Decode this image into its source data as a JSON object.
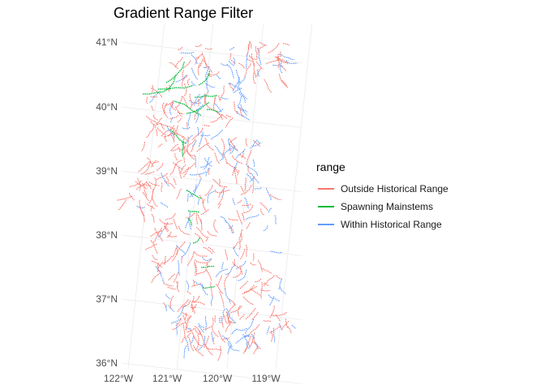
{
  "title": "Gradient Range Filter",
  "legend": {
    "title": "range",
    "items": [
      {
        "label": "Outside Historical Range",
        "color": "#F8766D"
      },
      {
        "label": "Spawning Mainstems",
        "color": "#00BA38"
      },
      {
        "label": "Within Historical Range",
        "color": "#619CFF"
      }
    ]
  },
  "axes": {
    "lat_labels": [
      "41°N",
      "40°N",
      "39°N",
      "38°N",
      "37°N",
      "36°N"
    ],
    "lon_labels": [
      "122°W",
      "121°W",
      "120°W",
      "119°W"
    ]
  },
  "map_data": {
    "type": "stream-network",
    "lat_range": [
      36,
      41
    ],
    "lon_range": [
      -122,
      -118.5
    ],
    "grid": true
  }
}
